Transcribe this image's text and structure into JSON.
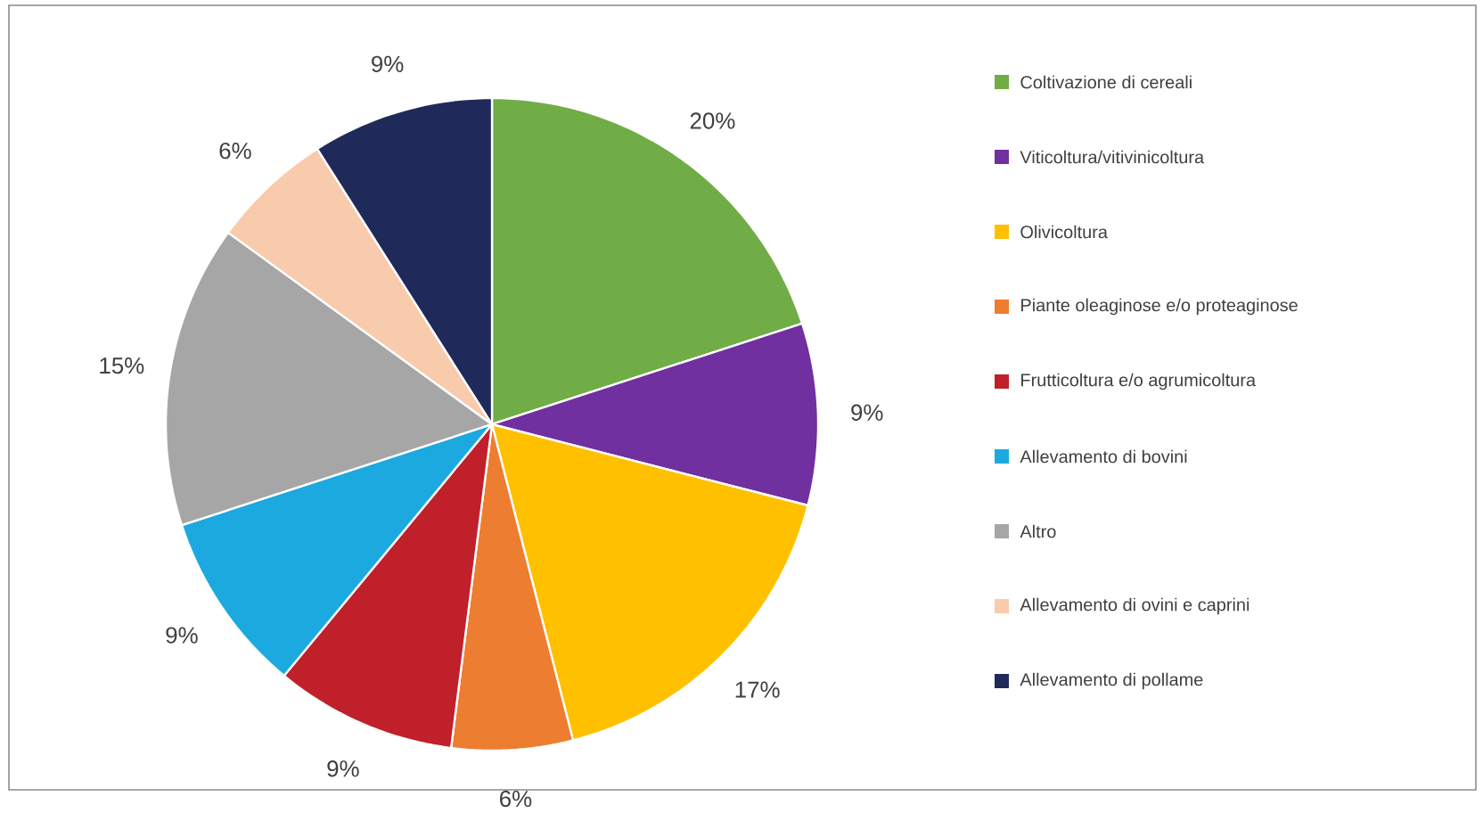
{
  "chart_data": {
    "type": "pie",
    "categories": [
      "Coltivazione di cereali",
      "Viticoltura/vitivinicoltura",
      "Olivicoltura",
      "Piante oleaginose e/o proteaginose",
      "Frutticoltura e/o agrumicoltura",
      "Allevamento di bovini",
      "Altro",
      "Allevamento di ovini e caprini",
      "Allevamento di pollame"
    ],
    "values": [
      20,
      9,
      17,
      6,
      9,
      9,
      15,
      6,
      9
    ],
    "colors": [
      "#70ad47",
      "#7030a0",
      "#ffc000",
      "#ed7d31",
      "#c0202a",
      "#1ca9e0",
      "#a6a6a6",
      "#f8cbad",
      "#1f2a5a"
    ],
    "value_labels": [
      "20%",
      "9%",
      "17%",
      "6%",
      "9%",
      "9%",
      "15%",
      "6%",
      "9%"
    ],
    "legend": "right"
  }
}
